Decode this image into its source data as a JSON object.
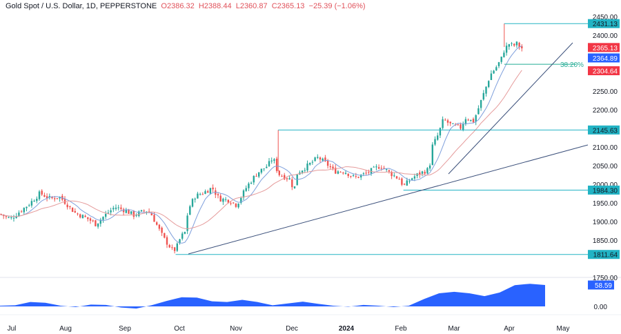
{
  "header": {
    "symbol": "Gold Spot / U.S. Dollar, 1D, PEPPERSTONE",
    "open": "O2386.32",
    "high": "H2388.44",
    "low": "L2360.87",
    "close": "C2365.13",
    "change": "−25.39 (−1.06%)"
  },
  "chart_data": {
    "type": "candlestick",
    "price_axis": {
      "ylim": [
        1750,
        2470
      ],
      "ticks": [
        "2450.00",
        "2400.00",
        "2250.00",
        "2200.00",
        "2100.00",
        "2050.00",
        "2000.00",
        "1950.00",
        "1900.00",
        "1850.00",
        "1750.00"
      ],
      "tick_values": [
        2450,
        2400,
        2250,
        2200,
        2100,
        2050,
        2000,
        1950,
        1900,
        1850,
        1750
      ]
    },
    "time_axis": {
      "labels": [
        "Jul",
        "Aug",
        "Sep",
        "Oct",
        "Nov",
        "Dec",
        "2024",
        "Feb",
        "Mar",
        "Apr",
        "May"
      ],
      "bold": "2024"
    },
    "close_path": [
      [
        "2023-06-27",
        1920
      ],
      [
        "2023-07-03",
        1907
      ],
      [
        "2023-07-14",
        1948
      ],
      [
        "2023-07-20",
        1976
      ],
      [
        "2023-07-26",
        1961
      ],
      [
        "2023-07-31",
        1967
      ],
      [
        "2023-08-03",
        1954
      ],
      [
        "2023-08-09",
        1924
      ],
      [
        "2023-08-17",
        1906
      ],
      [
        "2023-08-21",
        1893
      ],
      [
        "2023-08-25",
        1911
      ],
      [
        "2023-09-01",
        1939
      ],
      [
        "2023-09-07",
        1930
      ],
      [
        "2023-09-12",
        1917
      ],
      [
        "2023-09-19",
        1930
      ],
      [
        "2023-09-22",
        1920
      ],
      [
        "2023-09-26",
        1883
      ],
      [
        "2023-09-29",
        1856
      ],
      [
        "2023-10-04",
        1824
      ],
      [
        "2023-10-06",
        1824
      ],
      [
        "2023-10-09",
        1859
      ],
      [
        "2023-10-12",
        1874
      ],
      [
        "2023-10-13",
        1930
      ],
      [
        "2023-10-17",
        1967
      ],
      [
        "2023-10-23",
        1980
      ],
      [
        "2023-10-27",
        1991
      ],
      [
        "2023-10-31",
        1961
      ],
      [
        "2023-11-06",
        1957
      ],
      [
        "2023-11-10",
        1944
      ],
      [
        "2023-11-16",
        1994
      ],
      [
        "2023-11-22",
        2031
      ],
      [
        "2023-11-28",
        2050
      ],
      [
        "2023-12-01",
        2072
      ],
      [
        "2023-12-04",
        2028
      ],
      [
        "2023-12-11",
        2013
      ],
      [
        "2023-12-13",
        1981
      ],
      [
        "2023-12-15",
        2031
      ],
      [
        "2023-12-21",
        2050
      ],
      [
        "2023-12-27",
        2072
      ],
      [
        "2024-01-02",
        2050
      ],
      [
        "2024-01-05",
        2035
      ],
      [
        "2024-01-11",
        2035
      ],
      [
        "2024-01-17",
        2017
      ],
      [
        "2024-01-23",
        2028
      ],
      [
        "2024-02-01",
        2050
      ],
      [
        "2024-02-06",
        2031
      ],
      [
        "2024-02-12",
        2013
      ],
      [
        "2024-02-14",
        1994
      ],
      [
        "2024-02-19",
        2017
      ],
      [
        "2024-02-23",
        2028
      ],
      [
        "2024-02-29",
        2041
      ],
      [
        "2024-03-01",
        2096
      ],
      [
        "2024-03-05",
        2133
      ],
      [
        "2024-03-08",
        2174
      ],
      [
        "2024-03-13",
        2157
      ],
      [
        "2024-03-18",
        2152
      ],
      [
        "2024-03-21",
        2180
      ],
      [
        "2024-03-25",
        2167
      ],
      [
        "2024-03-27",
        2189
      ],
      [
        "2024-04-01",
        2254
      ],
      [
        "2024-04-04",
        2294
      ],
      [
        "2024-04-08",
        2318
      ],
      [
        "2024-04-11",
        2343
      ],
      [
        "2024-04-12",
        2361
      ],
      [
        "2024-04-15",
        2378
      ],
      [
        "2024-04-17",
        2370
      ],
      [
        "2024-04-19",
        2378
      ],
      [
        "2024-04-22",
        2365.13
      ]
    ],
    "spike_highs": [
      [
        "2023-12-04",
        2145.63
      ],
      [
        "2024-04-12",
        2431.13
      ]
    ],
    "moving_averages": [
      {
        "color": "#7e9fdc",
        "last": 2364.89
      },
      {
        "color": "#e59a9a",
        "last": 2304.64
      }
    ],
    "levels": [
      {
        "value": 2431.13,
        "label": "2431.13",
        "color": "#22b3c4"
      },
      {
        "value": 2145.63,
        "label": "2145.63",
        "color": "#22b3c4"
      },
      {
        "value": 1984.3,
        "label": "1984.30",
        "color": "#22b3c4"
      },
      {
        "value": 1811.64,
        "label": "1811.64",
        "color": "#22b3c4"
      }
    ],
    "fib": {
      "label": "38.20%",
      "value": 2322
    },
    "last_price": {
      "label": "2365.13",
      "color": "#f23645"
    },
    "ma_labels": [
      {
        "label": "2364.89",
        "color": "#2962ff"
      },
      {
        "label": "2304.64",
        "color": "#f23645"
      }
    ],
    "oscillator": {
      "type": "area",
      "color": "#2962ff",
      "last_label": "58.59",
      "zero_label": "0.00",
      "values": [
        2,
        3,
        12,
        10,
        2,
        -2,
        5,
        4,
        -3,
        -6,
        3,
        15,
        25,
        24,
        14,
        12,
        18,
        12,
        3,
        8,
        13,
        7,
        2,
        -1,
        4,
        2,
        -2,
        2,
        20,
        36,
        40,
        36,
        28,
        38,
        58,
        62,
        58.59
      ]
    }
  }
}
